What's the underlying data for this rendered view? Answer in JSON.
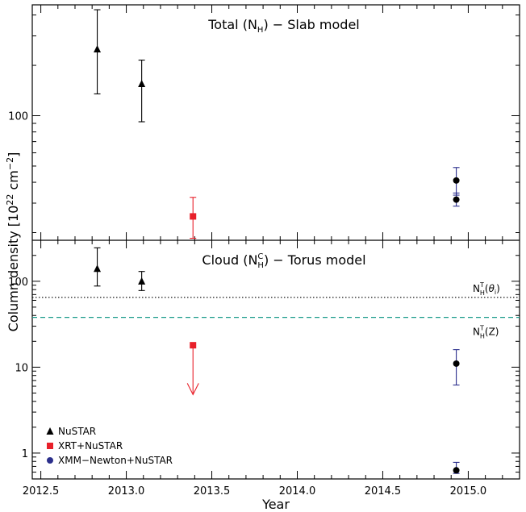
{
  "chart_data": {
    "type": "scatter",
    "xlabel": "Year",
    "ylabel": "Column density [10^22 cm^-2]",
    "ylabel_parts": {
      "main": "Column density  [10",
      "exp1": "22",
      "mid": " cm",
      "exp2": "−2",
      "end": "]"
    },
    "xlim": [
      2012.45,
      2015.3
    ],
    "x_ticks": [
      2012.5,
      2013.0,
      2013.5,
      2014.0,
      2014.5,
      2015.0
    ],
    "x_tick_labels": [
      "2012.5",
      "2013.0",
      "2013.5",
      "2014.0",
      "2014.5",
      "2015.0"
    ],
    "colors": {
      "nustar": "#000000",
      "xrt": "#e8202a",
      "xmm": "#2b2f8c",
      "torus_theta": "#000000",
      "torus_z": "#1a9a8a"
    },
    "legend": {
      "placement": "bottom-left",
      "entries": [
        {
          "label": "NuSTAR",
          "marker": "triangle",
          "color": "#000000"
        },
        {
          "label": "XRT+NuSTAR",
          "marker": "square",
          "color": "#e8202a"
        },
        {
          "label": "XMM−Newton+NuSTAR",
          "marker": "circle",
          "color": "#2b2f8c"
        }
      ]
    },
    "panels": [
      {
        "id": "top",
        "title_parts": {
          "pre": "Total (N",
          "sub": "H",
          "post": ")  −  Slab model"
        },
        "yscale": "log",
        "ylim": [
          18,
          460
        ],
        "y_ticks": [
          100
        ],
        "y_tick_labels": [
          "100"
        ],
        "series": [
          {
            "instrument": "NuSTAR",
            "marker": "triangle",
            "points": [
              {
                "x": 2012.83,
                "y": 250,
                "ylo": 135,
                "yhi": 430
              },
              {
                "x": 2013.09,
                "y": 155,
                "ylo": 92,
                "yhi": 215
              }
            ]
          },
          {
            "instrument": "XRT+NuSTAR",
            "marker": "square",
            "points": [
              {
                "x": 2013.39,
                "y": 25,
                "ylo": 18.5,
                "yhi": 32.5
              }
            ]
          },
          {
            "instrument": "XMM−Newton+NuSTAR",
            "marker": "circle",
            "points": [
              {
                "x": 2014.93,
                "y": 41,
                "ylo": 33.5,
                "yhi": 49
              },
              {
                "x": 2014.93,
                "y": 31.5,
                "ylo": 28.8,
                "yhi": 34.5
              }
            ]
          }
        ]
      },
      {
        "id": "bottom",
        "title_parts": {
          "pre": "Cloud (N",
          "sup": "C",
          "sub": "H",
          "post": ")  −  Torus model"
        },
        "yscale": "log",
        "ylim": [
          0.5,
          300
        ],
        "y_ticks": [
          1,
          10,
          100
        ],
        "y_tick_labels": [
          "1",
          "10",
          "100"
        ],
        "reference_lines": [
          {
            "name": "torus-theta",
            "y": 65,
            "style": "dotted",
            "label_parts": {
              "pre": "N",
              "sup": "T",
              "sub": "H",
              "post": "(θ",
              "sub2": "i",
              "end": ")"
            }
          },
          {
            "name": "torus-z",
            "y": 38,
            "style": "dashed",
            "label_parts": {
              "pre": "N",
              "sup": "T",
              "sub": "H",
              "post": "(Z)"
            }
          }
        ],
        "series": [
          {
            "instrument": "NuSTAR",
            "marker": "triangle",
            "points": [
              {
                "x": 2012.83,
                "y": 140,
                "ylo": 88,
                "yhi": 245
              },
              {
                "x": 2013.09,
                "y": 100,
                "ylo": 78,
                "yhi": 130
              }
            ]
          },
          {
            "instrument": "XRT+NuSTAR",
            "marker": "square",
            "upper_limit": true,
            "points": [
              {
                "x": 2013.39,
                "y": 18,
                "arrow_to": 4.8
              }
            ]
          },
          {
            "instrument": "XMM−Newton+NuSTAR",
            "marker": "circle",
            "points": [
              {
                "x": 2014.93,
                "y": 11,
                "ylo": 6.2,
                "yhi": 16
              },
              {
                "x": 2014.93,
                "y": 0.63,
                "ylo": 0.58,
                "yhi": 0.78
              }
            ]
          }
        ]
      }
    ]
  }
}
